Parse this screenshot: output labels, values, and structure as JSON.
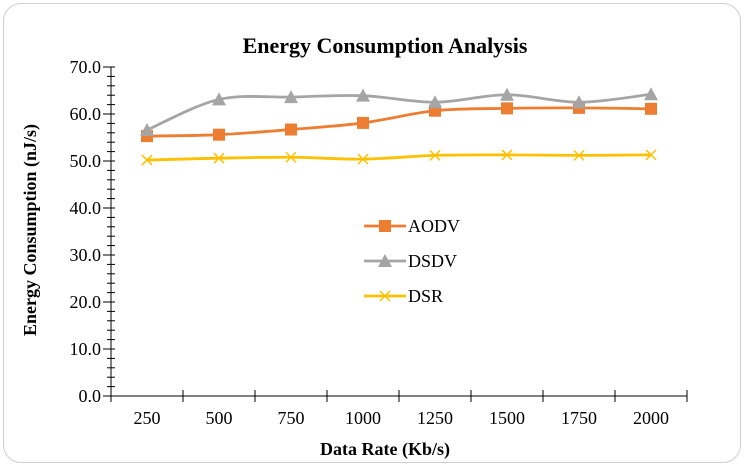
{
  "chart_data": {
    "type": "line",
    "title": "Energy Consumption Analysis",
    "xlabel": "Data Rate (Kb/s)",
    "ylabel": "Energy Consumption (nJ/s)",
    "categories": [
      "250",
      "500",
      "750",
      "1000",
      "1250",
      "1500",
      "1750",
      "2000"
    ],
    "ylim": [
      0,
      70
    ],
    "yticks": [
      "0.0",
      "10.0",
      "20.0",
      "30.0",
      "40.0",
      "50.0",
      "60.0",
      "70.0"
    ],
    "grid": false,
    "legend_position": "center",
    "series": [
      {
        "name": "AODV",
        "color": "#ED7D31",
        "marker": "square",
        "values": [
          55.3,
          55.6,
          56.7,
          58.1,
          60.7,
          61.2,
          61.3,
          61.1
        ]
      },
      {
        "name": "DSDV",
        "color": "#A5A5A5",
        "marker": "triangle",
        "values": [
          56.6,
          63.1,
          63.6,
          63.9,
          62.5,
          64.1,
          62.5,
          64.2
        ]
      },
      {
        "name": "DSR",
        "color": "#FFC000",
        "marker": "x",
        "values": [
          50.2,
          50.6,
          50.8,
          50.4,
          51.2,
          51.3,
          51.2,
          51.3
        ]
      }
    ]
  }
}
